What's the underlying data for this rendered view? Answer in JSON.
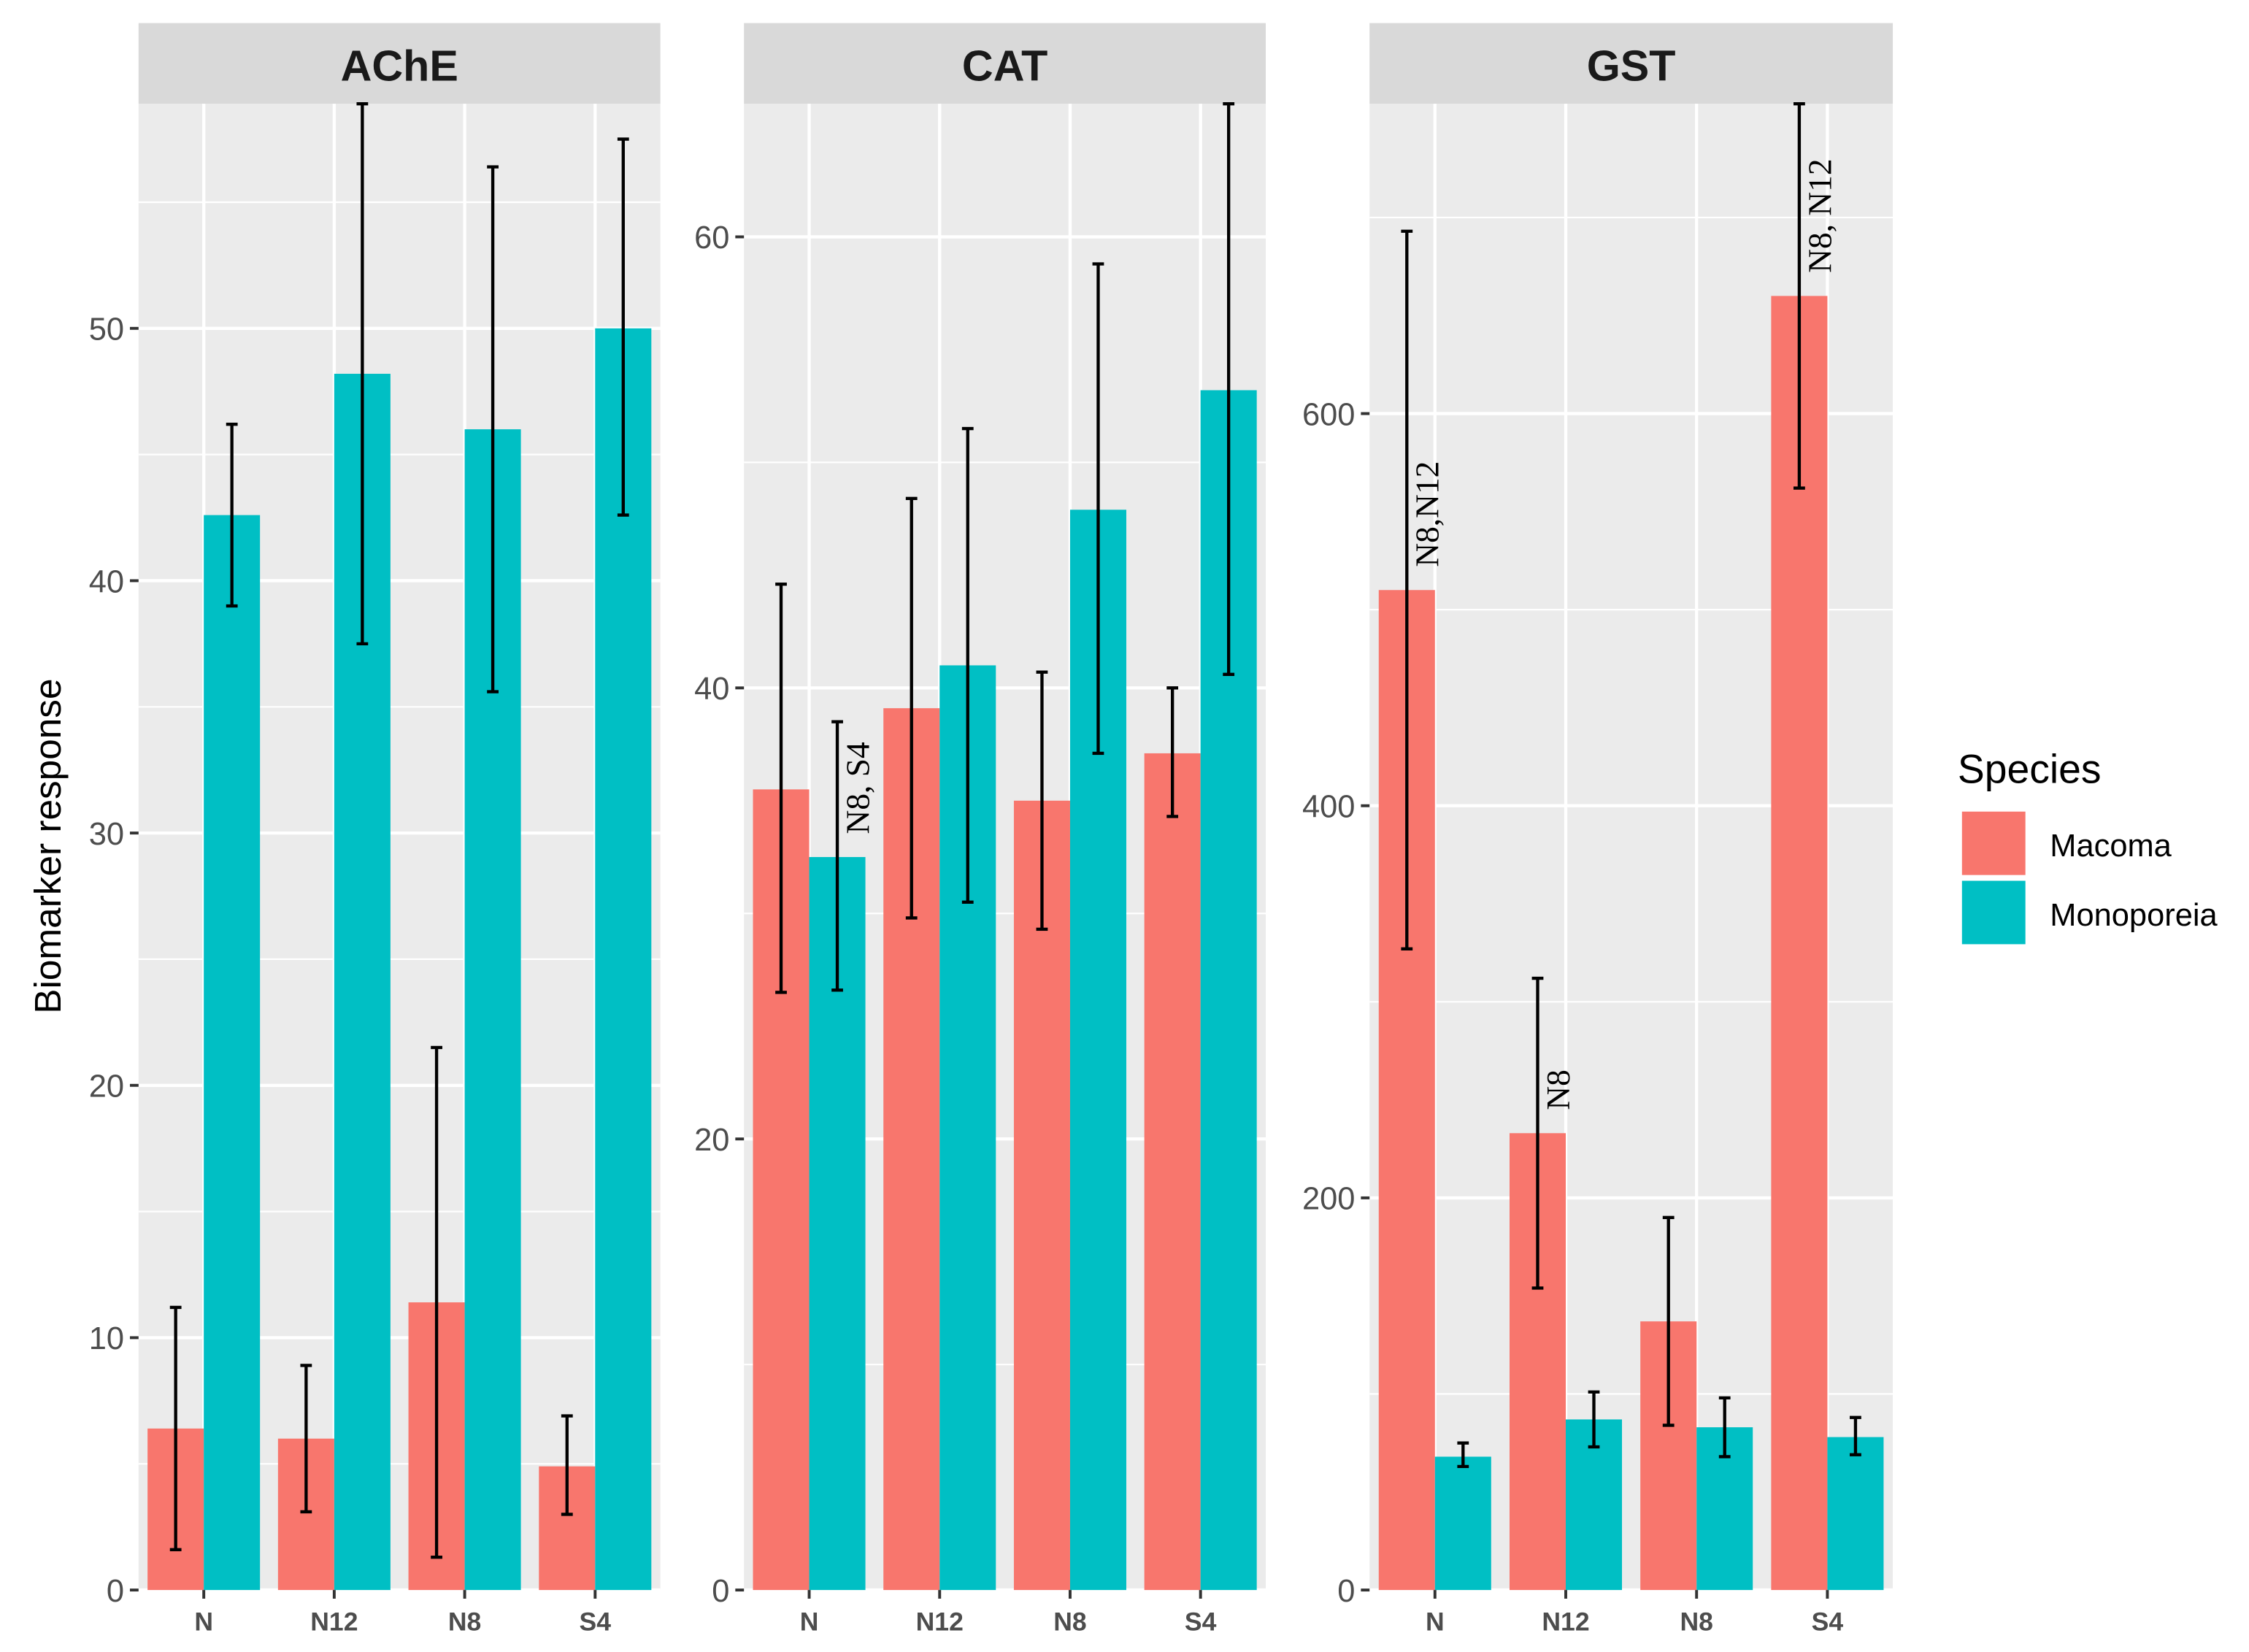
{
  "chart_data": {
    "type": "bar",
    "ylabel": "Biomarker response",
    "xlabel": "",
    "categories": [
      "N",
      "N12",
      "N8",
      "S4"
    ],
    "legend": {
      "title": "Species",
      "placement": "right",
      "entries": [
        "Macoma",
        "Monoporeia"
      ]
    },
    "colors": {
      "Macoma": "#F8766D",
      "Monoporeia": "#00BFC4",
      "panel_bg": "#EBEBEB",
      "strip_bg": "#D9D9D9"
    },
    "grid": true,
    "panels": [
      {
        "title": "AChE",
        "ylim": [
          0,
          58.9
        ],
        "yticks": [
          0,
          10,
          20,
          30,
          40,
          50
        ],
        "yminor": [
          5,
          15,
          25,
          35,
          45,
          55
        ],
        "series": [
          {
            "name": "Macoma",
            "values": [
              6.4,
              6.0,
              11.4,
              4.9
            ],
            "err_low": [
              1.6,
              3.1,
              1.3,
              3.0
            ],
            "err_high": [
              11.2,
              8.9,
              21.5,
              6.9
            ],
            "annotations": [
              "",
              "",
              "",
              ""
            ]
          },
          {
            "name": "Monoporeia",
            "values": [
              42.6,
              48.2,
              46.0,
              50.0
            ],
            "err_low": [
              39.0,
              37.5,
              35.6,
              42.6
            ],
            "err_high": [
              46.2,
              58.9,
              56.4,
              57.5
            ],
            "annotations": [
              "",
              "",
              "",
              ""
            ]
          }
        ]
      },
      {
        "title": "CAT",
        "ylim": [
          0,
          65.9
        ],
        "yticks": [
          0,
          20,
          40,
          60
        ],
        "yminor": [
          10,
          30,
          50
        ],
        "series": [
          {
            "name": "Macoma",
            "values": [
              35.5,
              39.1,
              35.0,
              37.1
            ],
            "err_low": [
              26.5,
              29.8,
              29.3,
              34.3
            ],
            "err_high": [
              44.6,
              48.4,
              40.7,
              40.0
            ],
            "annotations": [
              "",
              "",
              "",
              ""
            ]
          },
          {
            "name": "Monoporeia",
            "values": [
              32.5,
              41.0,
              47.9,
              53.2
            ],
            "err_low": [
              26.6,
              30.5,
              37.1,
              40.6
            ],
            "err_high": [
              38.5,
              51.5,
              58.8,
              65.9
            ],
            "annotations": [
              "N8, S4",
              "",
              "",
              ""
            ]
          }
        ]
      },
      {
        "title": "GST",
        "ylim": [
          0,
          758
        ],
        "yticks": [
          0,
          200,
          400,
          600
        ],
        "yminor": [
          100,
          300,
          500,
          700
        ],
        "series": [
          {
            "name": "Macoma",
            "values": [
              510,
              233,
              137,
              660
            ],
            "err_low": [
              327,
              154,
              84,
              562
            ],
            "err_high": [
              693,
              312,
              190,
              758
            ],
            "annotations": [
              "N8,N12",
              "N8",
              "",
              "N8, N12"
            ]
          },
          {
            "name": "Monoporeia",
            "values": [
              68,
              87,
              83,
              78
            ],
            "err_low": [
              63,
              73,
              68,
              69
            ],
            "err_high": [
              75,
              101,
              98,
              88
            ],
            "annotations": [
              "",
              "",
              "",
              ""
            ]
          }
        ]
      }
    ]
  }
}
